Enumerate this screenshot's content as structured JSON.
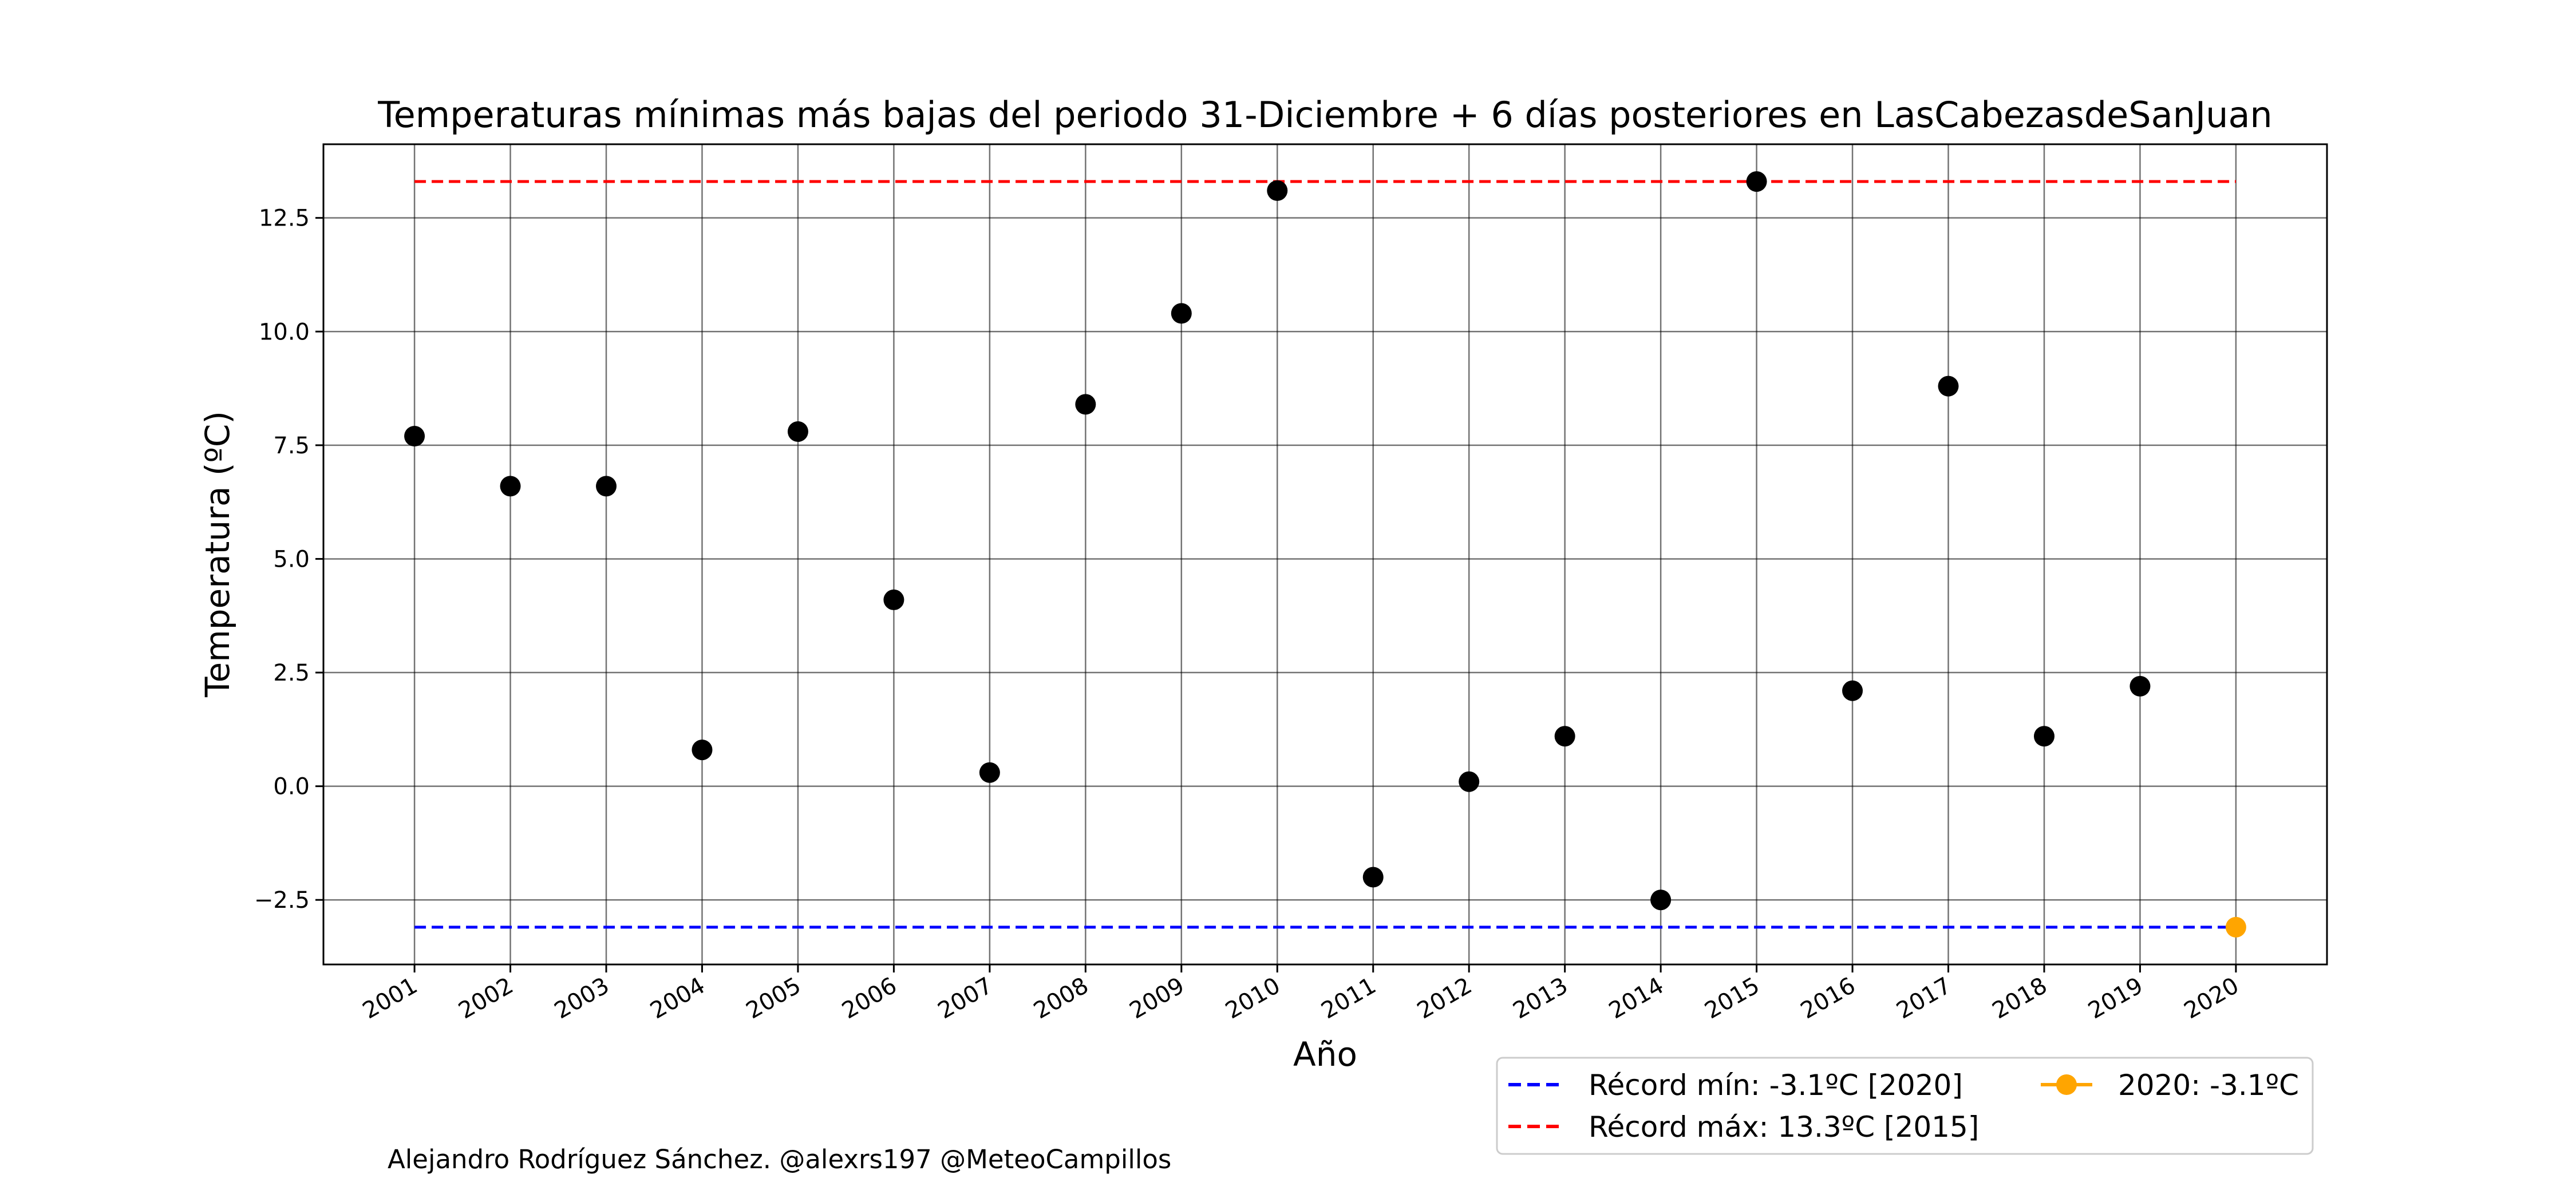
{
  "chart_data": {
    "type": "scatter",
    "title": "Temperaturas mínimas más bajas del periodo 31-Diciembre + 6 días posteriores en LasCabezasdeSanJuan",
    "xlabel": "Año",
    "ylabel": "Temperatura (ºC)",
    "x": [
      2001,
      2002,
      2003,
      2004,
      2005,
      2006,
      2007,
      2008,
      2009,
      2010,
      2011,
      2012,
      2013,
      2014,
      2015,
      2016,
      2017,
      2018,
      2019,
      2020
    ],
    "y": [
      7.7,
      6.6,
      6.6,
      0.8,
      7.8,
      4.1,
      0.3,
      8.4,
      10.4,
      13.1,
      -2.0,
      0.1,
      1.1,
      -2.5,
      13.3,
      2.1,
      8.8,
      1.1,
      2.2,
      -3.1
    ],
    "highlight": {
      "x": 2020,
      "y": -3.1,
      "color": "#ffa500",
      "label": "2020: -3.1ºC"
    },
    "record_min": {
      "value": -3.1,
      "color": "#0000ff",
      "label": "Récord mín: -3.1ºC [2020]"
    },
    "record_max": {
      "value": 13.3,
      "color": "#ff0000",
      "label": "Récord máx: 13.3ºC [2015]"
    },
    "xlim": [
      2000.05,
      2020.95
    ],
    "ylim": [
      -3.92,
      14.12
    ],
    "yticks": [
      -2.5,
      0.0,
      2.5,
      5.0,
      7.5,
      10.0,
      12.5
    ],
    "ytick_labels": [
      "−2.5",
      "0.0",
      "2.5",
      "5.0",
      "7.5",
      "10.0",
      "12.5"
    ],
    "grid": true,
    "point_color": "#000000",
    "legend_placement": "lower-right outside"
  },
  "credit": "Alejandro Rodríguez Sánchez. @alexrs197 @MeteoCampillos"
}
